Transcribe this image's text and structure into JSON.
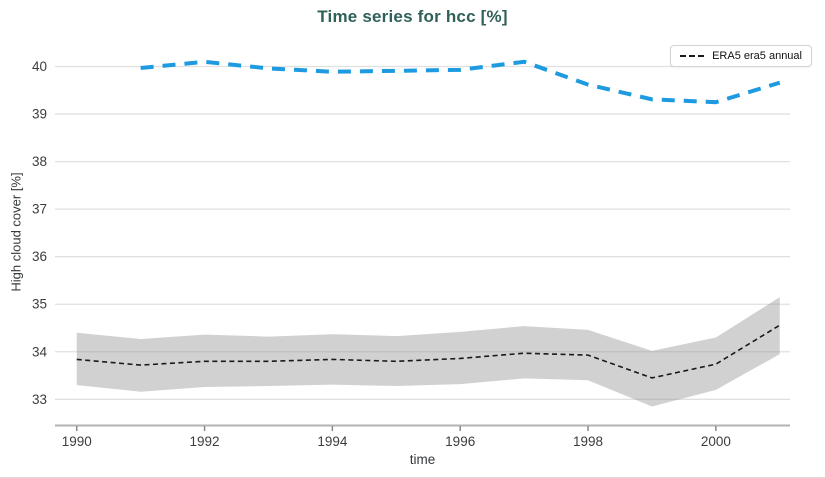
{
  "chart_data": {
    "type": "line",
    "title": "Time series for hcc [%]",
    "xlabel": "time",
    "ylabel": "High cloud cover [%]",
    "xlim": [
      1989.66,
      2001.16
    ],
    "ylim": [
      32.46,
      40.6
    ],
    "x_ticks": {
      "values": [
        1990,
        1992,
        1994,
        1996,
        1998,
        2000
      ],
      "labels": [
        "1990",
        "1992",
        "1994",
        "1996",
        "1998",
        "2000"
      ]
    },
    "y_ticks": {
      "values": [
        33,
        34,
        35,
        36,
        37,
        38,
        39,
        40
      ],
      "labels": [
        "33",
        "34",
        "35",
        "36",
        "37",
        "38",
        "39",
        "40"
      ]
    },
    "grid": "horizontal-only",
    "legend": {
      "position": "top-right",
      "entries": [
        "ERA5 era5 annual"
      ]
    },
    "colors": {
      "title": "#2f6059",
      "annual_line": "#1a1a1a",
      "band_fill": "#999999",
      "band_opacity": 0.45,
      "blue_line": "#1e9be0",
      "grid_line": "#e0e0e0",
      "axis_line": "#b3b3b3",
      "tick_mark": "#8a8a8a",
      "tick_text": "#3d3d3d"
    },
    "series": [
      {
        "id": "era5-annual",
        "name": "ERA5 era5 annual",
        "line_style": "dashed",
        "dash": "5 3.5",
        "width": 1.6,
        "color_key": "annual_line",
        "x": [
          1990,
          1991,
          1992,
          1993,
          1994,
          1995,
          1996,
          1997,
          1998,
          1999,
          2000,
          2001
        ],
        "y": [
          33.84,
          33.72,
          33.8,
          33.8,
          33.84,
          33.8,
          33.86,
          33.97,
          33.93,
          33.45,
          33.74,
          34.56
        ],
        "band_upper": [
          34.4,
          34.27,
          34.36,
          34.32,
          34.37,
          34.33,
          34.42,
          34.54,
          34.46,
          34.02,
          34.3,
          35.15
        ],
        "band_lower": [
          33.3,
          33.16,
          33.26,
          33.28,
          33.31,
          33.28,
          33.32,
          33.44,
          33.4,
          32.85,
          33.2,
          33.95
        ]
      },
      {
        "id": "blue-dashed-series",
        "name": "",
        "line_style": "dashed",
        "dash": "13 9",
        "width": 4,
        "color_key": "blue_line",
        "x": [
          1991,
          1992,
          1993,
          1994,
          1995,
          1996,
          1997,
          1998,
          1999,
          2000,
          2001
        ],
        "y": [
          39.97,
          40.1,
          39.96,
          39.89,
          39.91,
          39.93,
          40.1,
          39.62,
          39.31,
          39.25,
          39.66
        ]
      }
    ]
  }
}
